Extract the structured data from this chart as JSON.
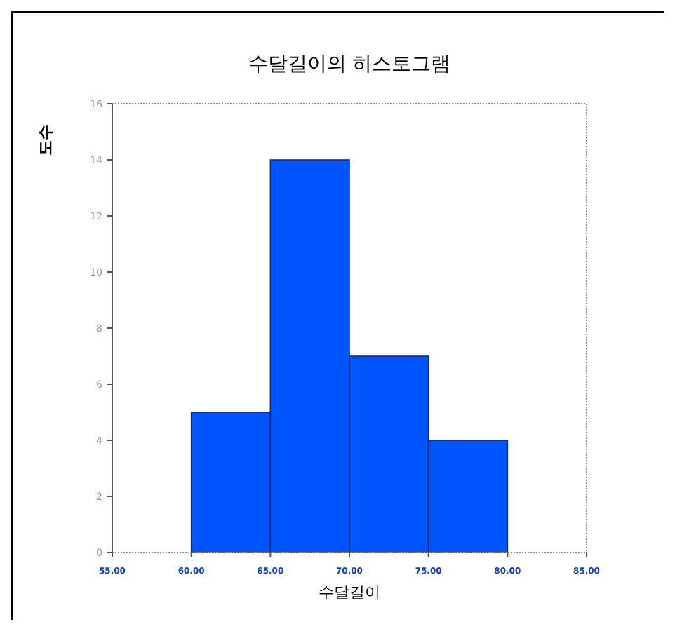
{
  "chart_data": {
    "type": "histogram",
    "title": "수달길이의 히스토그램",
    "xlabel": "수달길이",
    "ylabel": "도수",
    "bins": [
      60,
      65,
      70,
      75,
      80
    ],
    "values": [
      5,
      14,
      7,
      4
    ],
    "color": "#0055ff",
    "xlim": [
      55,
      85
    ],
    "xticks": [
      {
        "value": 55,
        "label": "55.00"
      },
      {
        "value": 60,
        "label": "60.00"
      },
      {
        "value": 65,
        "label": "65.00"
      },
      {
        "value": 70,
        "label": "70.00"
      },
      {
        "value": 75,
        "label": "75.00"
      },
      {
        "value": 80,
        "label": "80.00"
      },
      {
        "value": 85,
        "label": "85.00"
      }
    ],
    "ylim": [
      0,
      16
    ],
    "yticks": [
      0,
      2,
      4,
      6,
      8,
      10,
      12,
      14,
      16
    ]
  }
}
